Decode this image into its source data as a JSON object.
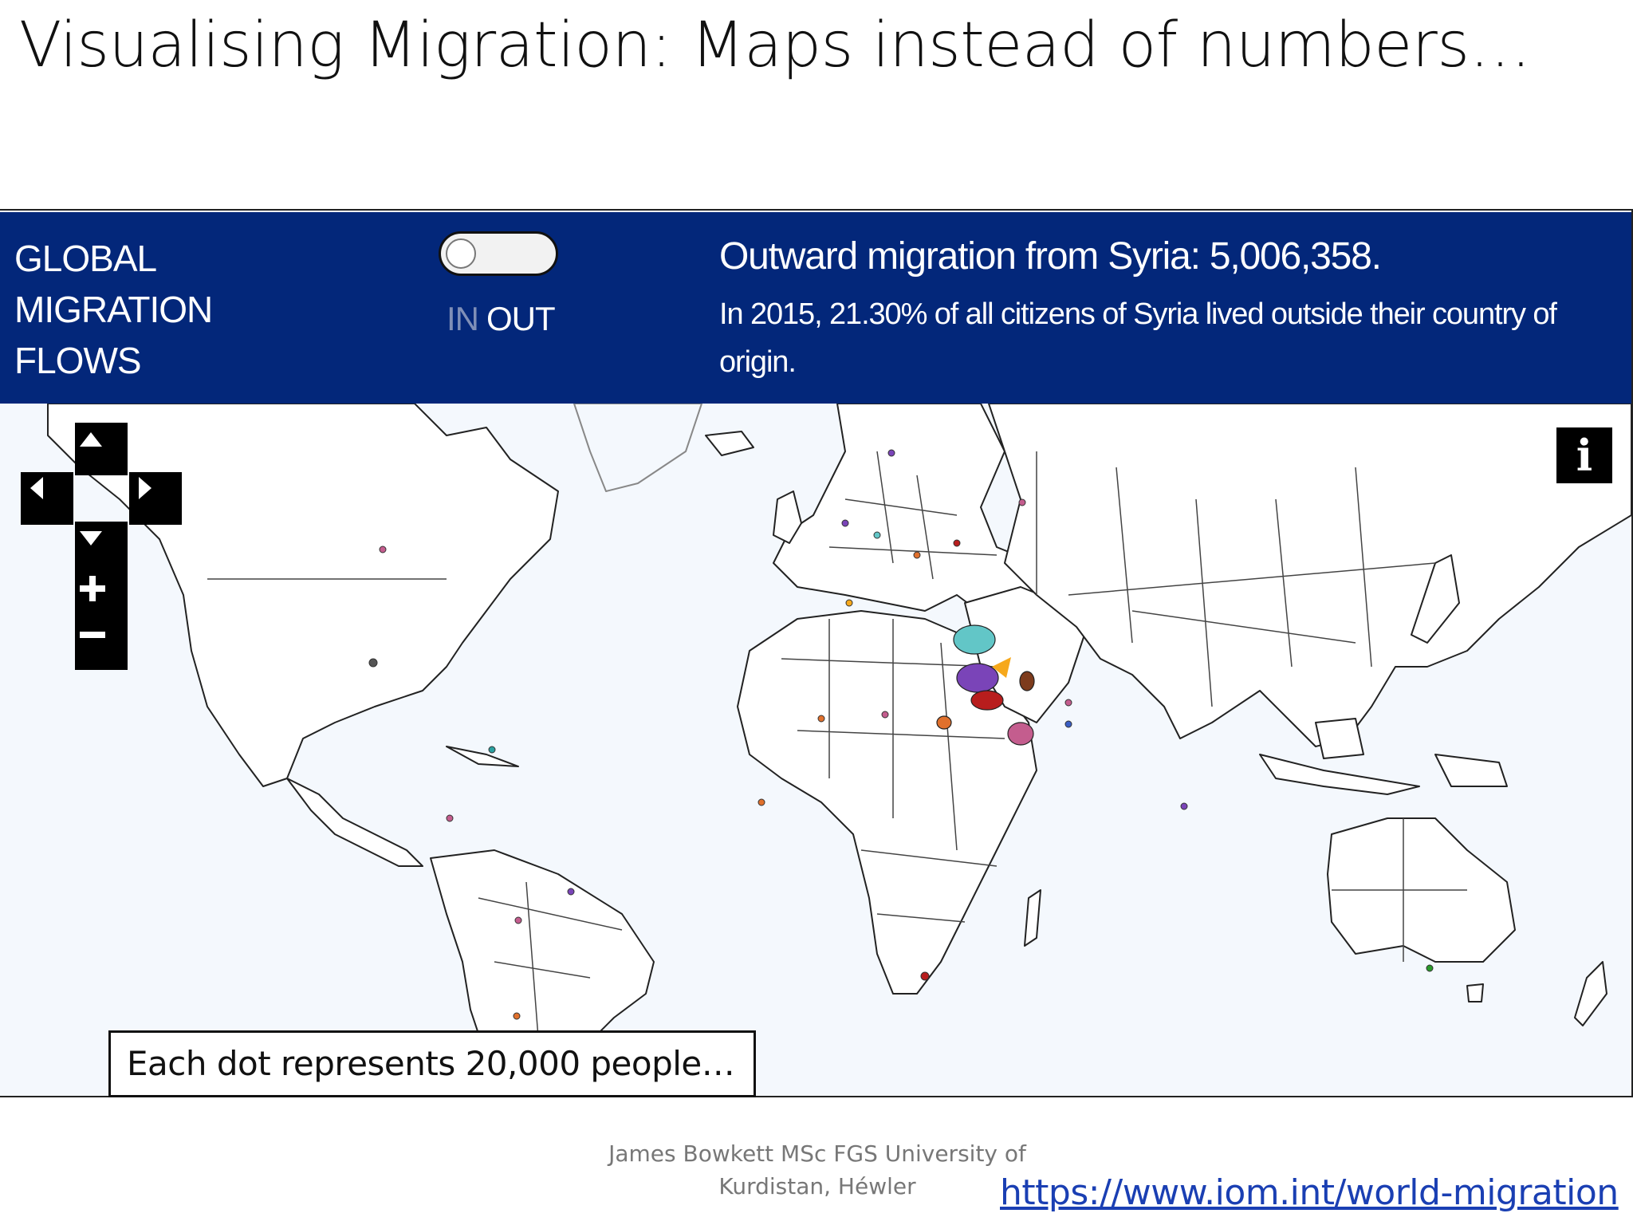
{
  "slide": {
    "title": "Visualising Migration: Maps instead of numbers…",
    "credit_line1": "James Bowkett MSc FGS University of",
    "credit_line2": "Kurdistan, Héwler",
    "link_text": "https://www.iom.int/world-migration"
  },
  "app": {
    "brand_lines": [
      "GLOBAL",
      "MIGRATION",
      "FLOWS"
    ],
    "toggle": {
      "in_label": "IN",
      "out_label": "OUT",
      "selected": "OUT"
    },
    "headline": "Outward migration from Syria: 5,006,358.",
    "subline": "In 2015, 21.30% of all citizens of Syria lived outside their country of origin.",
    "legend_note": "Each dot represents 20,000 people…",
    "info_icon": "i"
  },
  "controls": {
    "pan_up_icon": "triangle-up-icon",
    "pan_left_icon": "triangle-left-icon",
    "pan_right_icon": "triangle-right-icon",
    "pan_down_icon": "triangle-down-icon",
    "zoom_in_icon": "plus-icon",
    "zoom_out_icon": "minus-icon"
  },
  "colors": {
    "header": "#03277a",
    "map_ocean": "#f4f8fd",
    "land": "#ffffff",
    "border": "#222222",
    "link": "#1a3fb3"
  }
}
